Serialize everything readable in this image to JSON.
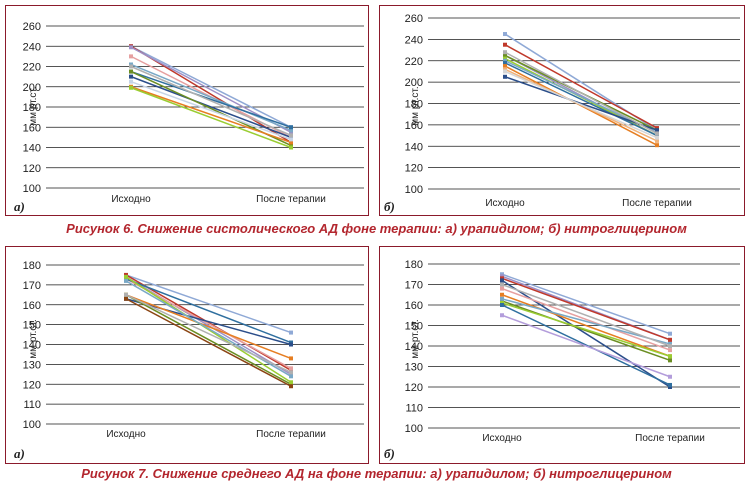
{
  "figure6": {
    "caption": "Рисунок 6. Снижение систолического АД фоне терапии: а) урапидилом; б) нитроглицерином"
  },
  "figure7": {
    "caption": "Рисунок 7. Снижение среднего АД на фоне терапии: а) урапидилом; б) нитроглицерином"
  },
  "chart_data": [
    {
      "id": "fig6a",
      "label": "а)",
      "type": "line",
      "categories": [
        "Исходно",
        "После терапии"
      ],
      "ylabel": "мм рт.ст.",
      "xlabel": "",
      "title": "",
      "ylim": [
        100,
        260
      ],
      "yticks": [
        100,
        120,
        140,
        160,
        180,
        200,
        220,
        240,
        260
      ],
      "grid": true,
      "series": [
        {
          "color": "#8fa9d6",
          "values": [
            240,
            160
          ]
        },
        {
          "color": "#c0392b",
          "values": [
            240,
            145
          ]
        },
        {
          "color": "#9d8fc6",
          "values": [
            239,
            155
          ]
        },
        {
          "color": "#e6a0a0",
          "values": [
            230,
            150
          ]
        },
        {
          "color": "#79a8c6",
          "values": [
            222,
            157
          ]
        },
        {
          "color": "#2f6f9f",
          "values": [
            215,
            160
          ]
        },
        {
          "color": "#2b4e8a",
          "values": [
            210,
            150
          ]
        },
        {
          "color": "#6b8e23",
          "values": [
            215,
            142
          ]
        },
        {
          "color": "#e67e22",
          "values": [
            200,
            145
          ]
        },
        {
          "color": "#c6d4e6",
          "values": [
            205,
            148
          ]
        },
        {
          "color": "#9acd32",
          "values": [
            199,
            140
          ]
        },
        {
          "color": "#b0b0b0",
          "values": [
            220,
            152
          ]
        }
      ]
    },
    {
      "id": "fig6b",
      "label": "б)",
      "type": "line",
      "categories": [
        "Исходно",
        "После терапии"
      ],
      "ylabel": "мм рт.ст.",
      "xlabel": "",
      "title": "",
      "ylim": [
        100,
        260
      ],
      "yticks": [
        100,
        120,
        140,
        160,
        180,
        200,
        220,
        240,
        260
      ],
      "grid": true,
      "series": [
        {
          "color": "#8fa9d6",
          "values": [
            245,
            155
          ]
        },
        {
          "color": "#c0392b",
          "values": [
            235,
            157
          ]
        },
        {
          "color": "#9d8fc6",
          "values": [
            225,
            150
          ]
        },
        {
          "color": "#6b8e23",
          "values": [
            225,
            155
          ]
        },
        {
          "color": "#9acd32",
          "values": [
            222,
            150
          ]
        },
        {
          "color": "#79a8c6",
          "values": [
            220,
            153
          ]
        },
        {
          "color": "#2f6f9f",
          "values": [
            218,
            150
          ]
        },
        {
          "color": "#e67e22",
          "values": [
            215,
            141
          ]
        },
        {
          "color": "#f0b27a",
          "values": [
            212,
            145
          ]
        },
        {
          "color": "#2b4e8a",
          "values": [
            205,
            155
          ]
        },
        {
          "color": "#d5d5d5",
          "values": [
            210,
            148
          ]
        },
        {
          "color": "#b0b0b0",
          "values": [
            228,
            152
          ]
        }
      ]
    },
    {
      "id": "fig7a",
      "label": "а)",
      "type": "line",
      "categories": [
        "Исходно",
        "После терапии"
      ],
      "ylabel": "мм рт.ст.",
      "xlabel": "",
      "title": "",
      "ylim": [
        100,
        180
      ],
      "yticks": [
        100,
        110,
        120,
        130,
        140,
        150,
        160,
        170,
        180
      ],
      "grid": true,
      "series": [
        {
          "color": "#8fa9d6",
          "values": [
            175,
            146
          ]
        },
        {
          "color": "#c0392b",
          "values": [
            175,
            127
          ]
        },
        {
          "color": "#9d8fc6",
          "values": [
            174,
            125
          ]
        },
        {
          "color": "#e6a0a0",
          "values": [
            173,
            128
          ]
        },
        {
          "color": "#2f6f9f",
          "values": [
            173,
            141
          ]
        },
        {
          "color": "#2b4e8a",
          "values": [
            163,
            140
          ]
        },
        {
          "color": "#e67e22",
          "values": [
            165,
            133
          ]
        },
        {
          "color": "#6b8e23",
          "values": [
            165,
            120
          ]
        },
        {
          "color": "#9acd32",
          "values": [
            174,
            121
          ]
        },
        {
          "color": "#8b4513",
          "values": [
            163,
            119
          ]
        },
        {
          "color": "#79a8c6",
          "values": [
            172,
            124
          ]
        },
        {
          "color": "#b0b0b0",
          "values": [
            165,
            126
          ]
        }
      ]
    },
    {
      "id": "fig7b",
      "label": "б)",
      "type": "line",
      "categories": [
        "Исходно",
        "После терапии"
      ],
      "ylabel": "мм рт.ст.",
      "xlabel": "",
      "title": "",
      "ylim": [
        100,
        180
      ],
      "yticks": [
        100,
        110,
        120,
        130,
        140,
        150,
        160,
        170,
        180
      ],
      "grid": true,
      "series": [
        {
          "color": "#8fa9d6",
          "values": [
            175,
            146
          ]
        },
        {
          "color": "#9d8fc6",
          "values": [
            174,
            143
          ]
        },
        {
          "color": "#c0392b",
          "values": [
            173,
            143
          ]
        },
        {
          "color": "#2b4e8a",
          "values": [
            172,
            120
          ]
        },
        {
          "color": "#e67e22",
          "values": [
            165,
            135
          ]
        },
        {
          "color": "#6b8e23",
          "values": [
            162,
            133
          ]
        },
        {
          "color": "#9acd32",
          "values": [
            161,
            135
          ]
        },
        {
          "color": "#2f6f9f",
          "values": [
            160,
            121
          ]
        },
        {
          "color": "#b39ddb",
          "values": [
            155,
            125
          ]
        },
        {
          "color": "#e6a0a0",
          "values": [
            168,
            138
          ]
        },
        {
          "color": "#79a8c6",
          "values": [
            163,
            141
          ]
        },
        {
          "color": "#b0b0b0",
          "values": [
            170,
            140
          ]
        }
      ]
    }
  ]
}
